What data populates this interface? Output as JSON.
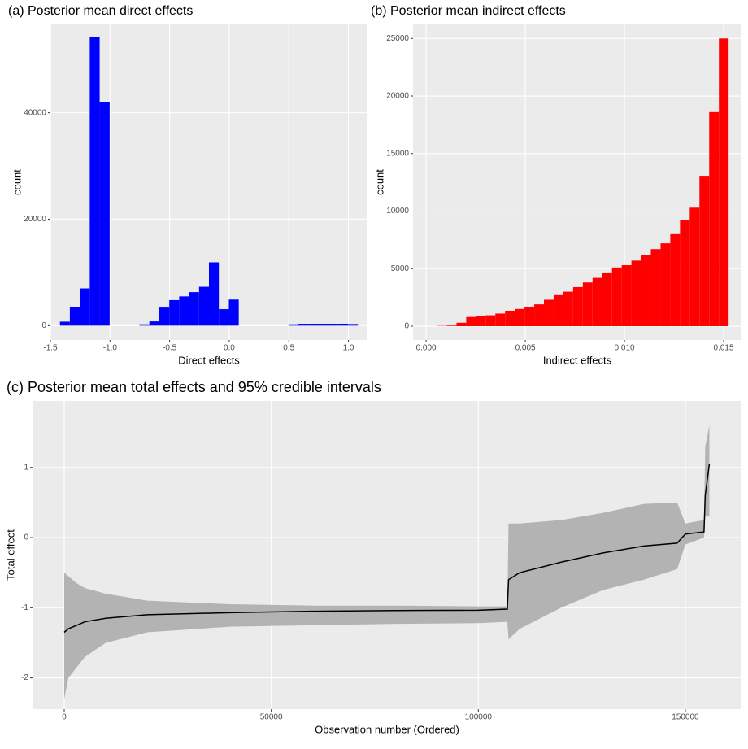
{
  "chart_data": [
    {
      "type": "histogram",
      "title": "(a) Posterior mean direct effects",
      "x_label": "Direct effects",
      "y_label": "count",
      "color": "#0000ff",
      "bins": [
        -1.42,
        -1.337,
        -1.253,
        -1.17,
        -1.087,
        -1.003,
        -0.92,
        -0.837,
        -0.753,
        -0.67,
        -0.587,
        -0.503,
        -0.42,
        -0.337,
        -0.253,
        -0.17,
        -0.087,
        -0.003,
        0.08,
        0.163,
        0.247,
        0.33,
        0.413,
        0.497,
        0.58,
        0.663,
        0.747,
        0.83,
        0.913,
        0.997,
        1.08
      ],
      "values": [
        750,
        3500,
        7000,
        54200,
        42000,
        0,
        0,
        0,
        100,
        800,
        3400,
        4800,
        5500,
        6300,
        7300,
        11900,
        3100,
        4900,
        0,
        0,
        0,
        0,
        0,
        100,
        200,
        250,
        300,
        300,
        350,
        150
      ],
      "xlim": [
        -1.5,
        1.16
      ],
      "xticks": [
        {
          "value": -1.5,
          "label": "-1.5"
        },
        {
          "value": -1,
          "label": "-1.0"
        },
        -0.5,
        {
          "value": 0,
          "label": "0.0"
        },
        0.5,
        {
          "value": 1,
          "label": "1.0"
        }
      ],
      "ylim": [
        -2700,
        56600
      ],
      "yticks": [
        0,
        20000,
        40000
      ],
      "grid": true
    },
    {
      "type": "histogram",
      "title": "(b) Posterior mean indirect effects",
      "x_label": "Indirect effects",
      "y_label": "count",
      "color": "#ff0000",
      "bins": [
        0.00055,
        0.00104,
        0.00153,
        0.00202,
        0.00251,
        0.003,
        0.00349,
        0.00398,
        0.00447,
        0.00496,
        0.00545,
        0.00594,
        0.00643,
        0.00692,
        0.00741,
        0.0079,
        0.00839,
        0.00888,
        0.00937,
        0.00986,
        0.01035,
        0.01084,
        0.01133,
        0.01182,
        0.01231,
        0.0128,
        0.01329,
        0.01378,
        0.01427,
        0.01476,
        0.01525
      ],
      "values": [
        20,
        50,
        300,
        800,
        850,
        950,
        1100,
        1300,
        1500,
        1700,
        1900,
        2300,
        2700,
        3000,
        3400,
        3800,
        4200,
        4600,
        5100,
        5300,
        5700,
        6200,
        6700,
        7200,
        8000,
        9200,
        10300,
        13000,
        18600,
        25000
      ],
      "xlim": [
        -0.00066,
        0.0159
      ],
      "xticks": [
        {
          "value": 0,
          "label": "0.000"
        },
        {
          "value": 0.005,
          "label": "0.005"
        },
        {
          "value": 0.01,
          "label": "0.010"
        },
        {
          "value": 0.015,
          "label": "0.015"
        }
      ],
      "ylim": [
        -1200,
        26220
      ],
      "yticks": [
        0,
        5000,
        10000,
        15000,
        20000,
        25000
      ],
      "grid": true
    },
    {
      "type": "ribbon",
      "title": "(c) Posterior mean total effects and 95% credible intervals",
      "x_label": "Observation number (Ordered)",
      "y_label": "Total effect",
      "color": "#000000",
      "band_color": "#b3b3b3",
      "x": [
        0,
        1000,
        3000,
        5000,
        10000,
        20000,
        40000,
        60000,
        80000,
        100000,
        107000,
        107300,
        110000,
        120000,
        130000,
        140000,
        148000,
        150000,
        154500,
        154800,
        155800
      ],
      "values": [
        -1.35,
        -1.3,
        -1.25,
        -1.2,
        -1.15,
        -1.1,
        -1.07,
        -1.05,
        -1.04,
        -1.035,
        -1.02,
        -0.6,
        -0.5,
        -0.35,
        -0.22,
        -0.12,
        -0.08,
        0.05,
        0.08,
        0.6,
        1.05
      ],
      "lower": [
        -2.3,
        -2.0,
        -1.85,
        -1.7,
        -1.5,
        -1.35,
        -1.27,
        -1.25,
        -1.23,
        -1.22,
        -1.2,
        -1.45,
        -1.3,
        -1.0,
        -0.75,
        -0.6,
        -0.45,
        -0.1,
        0.0,
        0.3,
        0.3
      ],
      "upper": [
        -0.5,
        -0.55,
        -0.65,
        -0.72,
        -0.8,
        -0.9,
        -0.95,
        -0.97,
        -0.97,
        -0.98,
        -0.98,
        0.2,
        0.2,
        0.25,
        0.35,
        0.48,
        0.5,
        0.2,
        0.25,
        1.3,
        1.6
      ],
      "xlim": [
        -7660,
        163560
      ],
      "xticks": [
        0,
        50000,
        100000,
        150000
      ],
      "ylim": [
        -2.445,
        1.947
      ],
      "yticks": [
        -2,
        -1,
        0,
        1
      ],
      "grid": true
    }
  ]
}
